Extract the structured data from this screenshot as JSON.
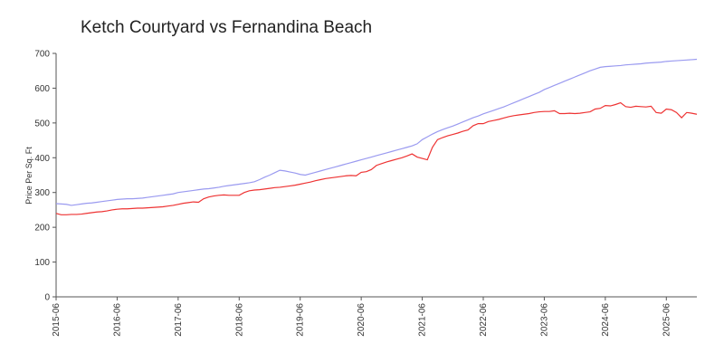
{
  "chart_data": {
    "type": "line",
    "title": "Ketch Courtyard vs Fernandina Beach",
    "ylabel": "Price Per Sq. Ft",
    "categories": [
      "2015-06",
      "2015-07",
      "2015-08",
      "2015-09",
      "2015-10",
      "2015-11",
      "2015-12",
      "2016-01",
      "2016-02",
      "2016-03",
      "2016-04",
      "2016-05",
      "2016-06",
      "2016-07",
      "2016-08",
      "2016-09",
      "2016-10",
      "2016-11",
      "2016-12",
      "2017-01",
      "2017-02",
      "2017-03",
      "2017-04",
      "2017-05",
      "2017-06",
      "2017-07",
      "2017-08",
      "2017-09",
      "2017-10",
      "2017-11",
      "2017-12",
      "2018-01",
      "2018-02",
      "2018-03",
      "2018-04",
      "2018-05",
      "2018-06",
      "2018-07",
      "2018-08",
      "2018-09",
      "2018-10",
      "2018-11",
      "2018-12",
      "2019-01",
      "2019-02",
      "2019-03",
      "2019-04",
      "2019-05",
      "2019-06",
      "2019-07",
      "2019-08",
      "2019-09",
      "2019-10",
      "2019-11",
      "2019-12",
      "2020-01",
      "2020-02",
      "2020-03",
      "2020-04",
      "2020-05",
      "2020-06",
      "2020-07",
      "2020-08",
      "2020-09",
      "2020-10",
      "2020-11",
      "2020-12",
      "2021-01",
      "2021-02",
      "2021-03",
      "2021-04",
      "2021-05",
      "2021-06",
      "2021-07",
      "2021-08",
      "2021-09",
      "2021-10",
      "2021-11",
      "2021-12",
      "2022-01",
      "2022-02",
      "2022-03",
      "2022-04",
      "2022-05",
      "2022-06",
      "2022-07",
      "2022-08",
      "2022-09",
      "2022-10",
      "2022-11",
      "2022-12",
      "2023-01",
      "2023-02",
      "2023-03",
      "2023-04",
      "2023-05",
      "2023-06",
      "2023-07",
      "2023-08",
      "2023-09",
      "2023-10",
      "2023-11",
      "2023-12",
      "2024-01",
      "2024-02",
      "2024-03",
      "2024-04",
      "2024-05",
      "2024-06",
      "2024-07",
      "2024-08",
      "2024-09",
      "2024-10",
      "2024-11",
      "2024-12",
      "2025-01",
      "2025-02",
      "2025-03",
      "2025-04",
      "2025-05",
      "2025-06",
      "2025-07",
      "2025-08",
      "2025-09",
      "2025-10",
      "2025-11",
      "2025-12"
    ],
    "series": [
      {
        "color": "#9a9af0",
        "values": [
          268,
          267,
          266,
          263,
          265,
          267,
          269,
          270,
          272,
          274,
          276,
          278,
          280,
          281,
          282,
          282,
          283,
          284,
          286,
          288,
          290,
          292,
          294,
          296,
          300,
          302,
          304,
          306,
          308,
          310,
          311,
          313,
          315,
          318,
          320,
          322,
          324,
          326,
          328,
          331,
          337,
          344,
          350,
          357,
          364,
          362,
          359,
          356,
          352,
          350,
          354,
          358,
          362,
          366,
          370,
          374,
          378,
          382,
          386,
          390,
          394,
          398,
          402,
          406,
          410,
          414,
          418,
          422,
          426,
          430,
          434,
          440,
          452,
          460,
          468,
          475,
          481,
          486,
          491,
          497,
          503,
          509,
          515,
          520,
          526,
          531,
          536,
          541,
          546,
          552,
          558,
          564,
          570,
          576,
          582,
          588,
          596,
          602,
          608,
          614,
          620,
          626,
          632,
          638,
          644,
          650,
          655,
          660,
          662,
          663,
          664,
          665,
          667,
          668,
          669,
          670,
          672,
          673,
          674,
          675,
          677,
          678,
          679,
          680,
          681,
          682,
          683
        ]
      },
      {
        "color": "#ee3333",
        "values": [
          240,
          236,
          236,
          237,
          237,
          238,
          240,
          242,
          244,
          245,
          247,
          250,
          252,
          253,
          253,
          254,
          255,
          255,
          256,
          257,
          258,
          259,
          261,
          263,
          266,
          269,
          271,
          273,
          272,
          282,
          287,
          290,
          292,
          293,
          292,
          292,
          292,
          300,
          305,
          307,
          308,
          310,
          312,
          314,
          315,
          317,
          319,
          321,
          324,
          327,
          330,
          334,
          337,
          340,
          342,
          344,
          346,
          348,
          349,
          348,
          358,
          360,
          366,
          378,
          383,
          388,
          392,
          396,
          400,
          405,
          411,
          402,
          398,
          394,
          430,
          452,
          458,
          463,
          467,
          471,
          476,
          480,
          492,
          498,
          498,
          504,
          507,
          510,
          514,
          518,
          521,
          523,
          525,
          527,
          530,
          532,
          533,
          533,
          535,
          527,
          527,
          528,
          527,
          528,
          530,
          532,
          540,
          542,
          550,
          549,
          553,
          558,
          547,
          545,
          548,
          547,
          546,
          548,
          530,
          528,
          540,
          538,
          530,
          515,
          530,
          528,
          525
        ]
      }
    ],
    "xticks": [
      "2015-06",
      "2016-06",
      "2017-06",
      "2018-06",
      "2019-06",
      "2020-06",
      "2021-06",
      "2022-06",
      "2023-06",
      "2024-06",
      "2025-06"
    ],
    "ylim": [
      0,
      700
    ],
    "yticks": [
      0,
      100,
      200,
      300,
      400,
      500,
      600,
      700
    ],
    "grid": false
  }
}
